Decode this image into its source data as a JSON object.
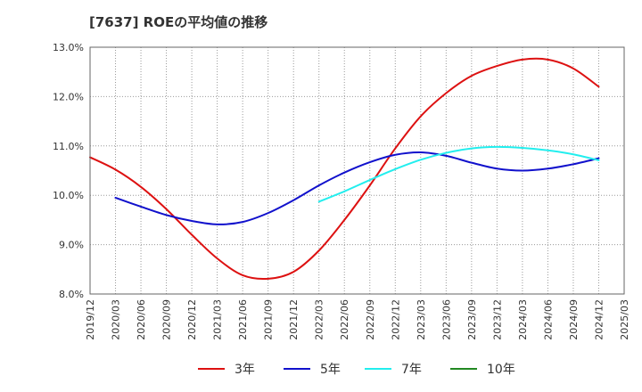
{
  "chart_data": {
    "type": "line",
    "title": "[7637]  ROEの平均値の推移",
    "y_unit": "%",
    "ylim": [
      8.0,
      13.0
    ],
    "y_ticks": [
      "8.0%",
      "9.0%",
      "10.0%",
      "11.0%",
      "12.0%",
      "13.0%"
    ],
    "x_ticks": [
      "2019/12",
      "2020/03",
      "2020/06",
      "2020/09",
      "2020/12",
      "2021/03",
      "2021/06",
      "2021/09",
      "2021/12",
      "2022/03",
      "2022/06",
      "2022/09",
      "2022/12",
      "2023/03",
      "2023/06",
      "2023/09",
      "2023/12",
      "2024/03",
      "2024/06",
      "2024/09",
      "2024/12",
      "2025/03"
    ],
    "grid": true,
    "legend_position": "bottom",
    "series": [
      {
        "name": "3年",
        "color": "#dd1111",
        "x": [
          "2019/12",
          "2020/03",
          "2020/06",
          "2020/09",
          "2020/12",
          "2021/03",
          "2021/06",
          "2021/09",
          "2021/12",
          "2022/03",
          "2022/06",
          "2022/09",
          "2022/12",
          "2023/03",
          "2023/06",
          "2023/09",
          "2023/12",
          "2024/03",
          "2024/06",
          "2024/09",
          "2024/12"
        ],
        "values": [
          10.77,
          10.52,
          10.17,
          9.72,
          9.2,
          8.72,
          8.38,
          8.31,
          8.45,
          8.88,
          9.5,
          10.2,
          10.95,
          11.6,
          12.07,
          12.42,
          12.62,
          12.75,
          12.75,
          12.57,
          12.2
        ]
      },
      {
        "name": "5年",
        "color": "#1111cc",
        "x": [
          "2020/03",
          "2020/06",
          "2020/09",
          "2020/12",
          "2021/03",
          "2021/06",
          "2021/09",
          "2021/12",
          "2022/03",
          "2022/06",
          "2022/09",
          "2022/12",
          "2023/03",
          "2023/06",
          "2023/09",
          "2023/12",
          "2024/03",
          "2024/06",
          "2024/09",
          "2024/12"
        ],
        "values": [
          9.95,
          9.77,
          9.6,
          9.48,
          9.41,
          9.46,
          9.64,
          9.9,
          10.2,
          10.46,
          10.67,
          10.82,
          10.87,
          10.8,
          10.66,
          10.54,
          10.5,
          10.54,
          10.63,
          10.75
        ]
      },
      {
        "name": "7年",
        "color": "#22eeee",
        "x": [
          "2022/03",
          "2022/06",
          "2022/09",
          "2022/12",
          "2023/03",
          "2023/06",
          "2023/09",
          "2023/12",
          "2024/03",
          "2024/06",
          "2024/09",
          "2024/12"
        ],
        "values": [
          9.87,
          10.08,
          10.31,
          10.53,
          10.72,
          10.86,
          10.95,
          10.98,
          10.96,
          10.91,
          10.83,
          10.71
        ]
      },
      {
        "name": "10年",
        "color": "#228822",
        "x": [],
        "values": []
      }
    ]
  }
}
